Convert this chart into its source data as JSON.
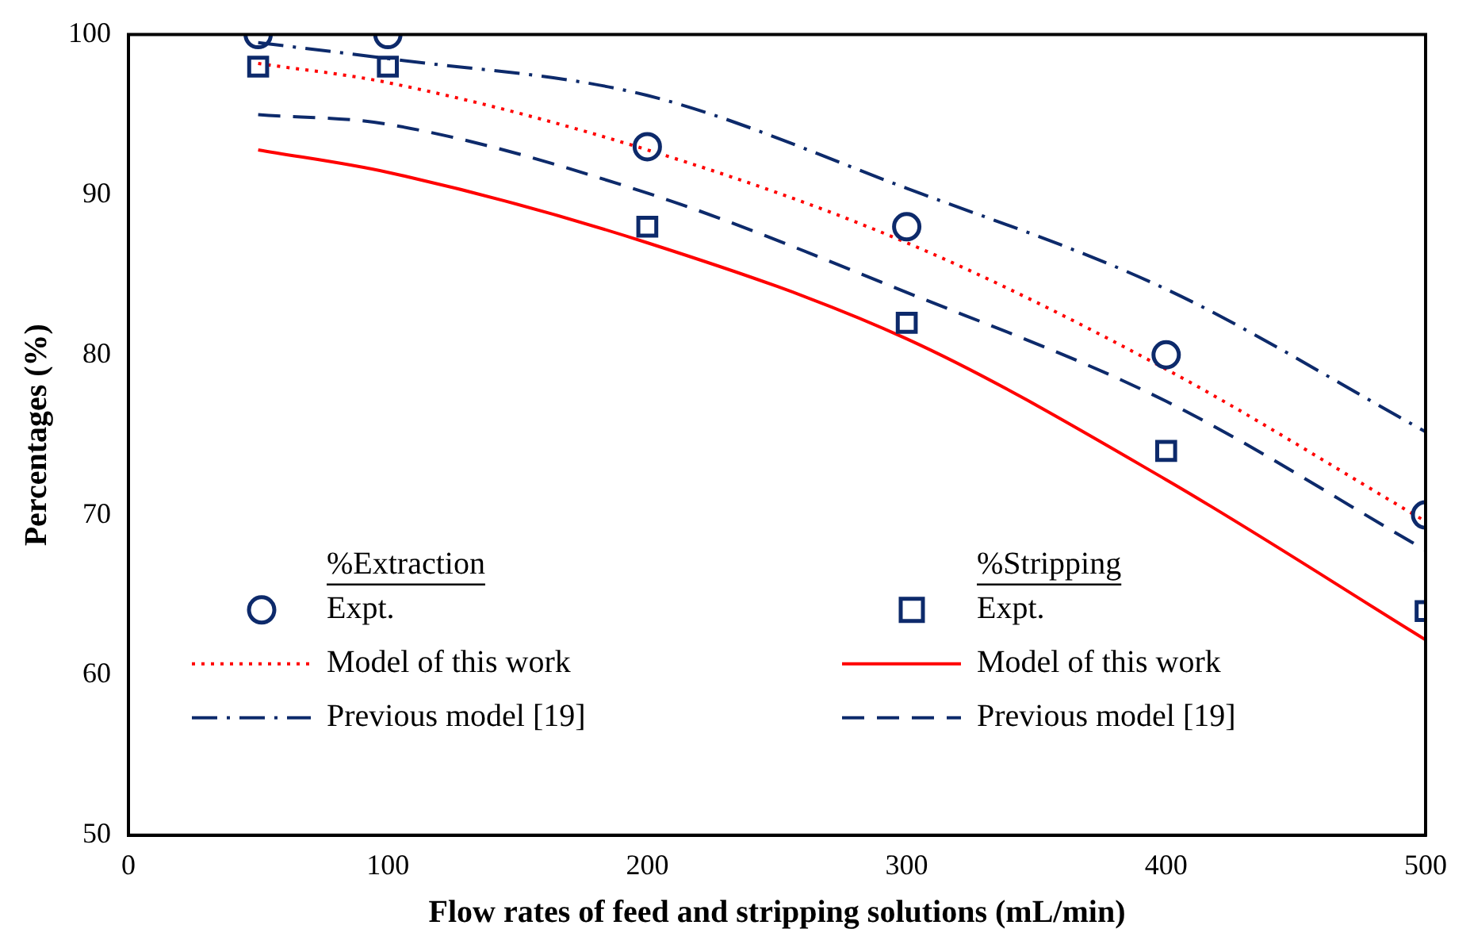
{
  "chart_data": {
    "type": "line",
    "xlabel": "Flow rates of feed and stripping solutions (mL/min)",
    "ylabel": "Percentages (%)",
    "x": [
      50,
      100,
      200,
      300,
      400,
      500
    ],
    "xlim": [
      0,
      500
    ],
    "xticks": [
      0,
      100,
      200,
      300,
      400,
      500
    ],
    "ylim": [
      50,
      100
    ],
    "yticks": [
      50,
      60,
      70,
      80,
      90,
      100
    ],
    "grid": false,
    "legend": "bottom",
    "annotations": [
      "%Extraction",
      "%Stripping"
    ],
    "series": [
      {
        "name": "Expt.",
        "type": "scatter",
        "marker": "circle",
        "color": "#0d2a6b",
        "values": [
          100,
          100,
          93,
          88,
          80,
          70
        ]
      },
      {
        "name": "Model of this work",
        "marker": "none",
        "line_style": "dotted",
        "color": "#ff0000",
        "values": [
          98.2,
          97,
          92.8,
          87,
          79.1,
          69.6
        ]
      },
      {
        "name": "Previous model [19]",
        "marker": "none",
        "line_style": "dashdot",
        "color": "#0d2a6b",
        "values": [
          99.5,
          98.5,
          96.2,
          90.4,
          84.1,
          75.2
        ]
      },
      {
        "name": "Expt.",
        "type": "scatter",
        "marker": "square",
        "color": "#0d2a6b",
        "values": [
          98,
          98,
          88,
          82,
          74,
          64
        ]
      },
      {
        "name": "Model of this work",
        "marker": "none",
        "line_style": "solid",
        "color": "#ff0000",
        "values": [
          92.8,
          91.4,
          87,
          81,
          72.2,
          62.2
        ]
      },
      {
        "name": "Previous model [19]",
        "marker": "none",
        "line_style": "dashed",
        "color": "#0d2a6b",
        "values": [
          95,
          94.4,
          90.1,
          83.9,
          77.1,
          67.8
        ]
      }
    ]
  }
}
